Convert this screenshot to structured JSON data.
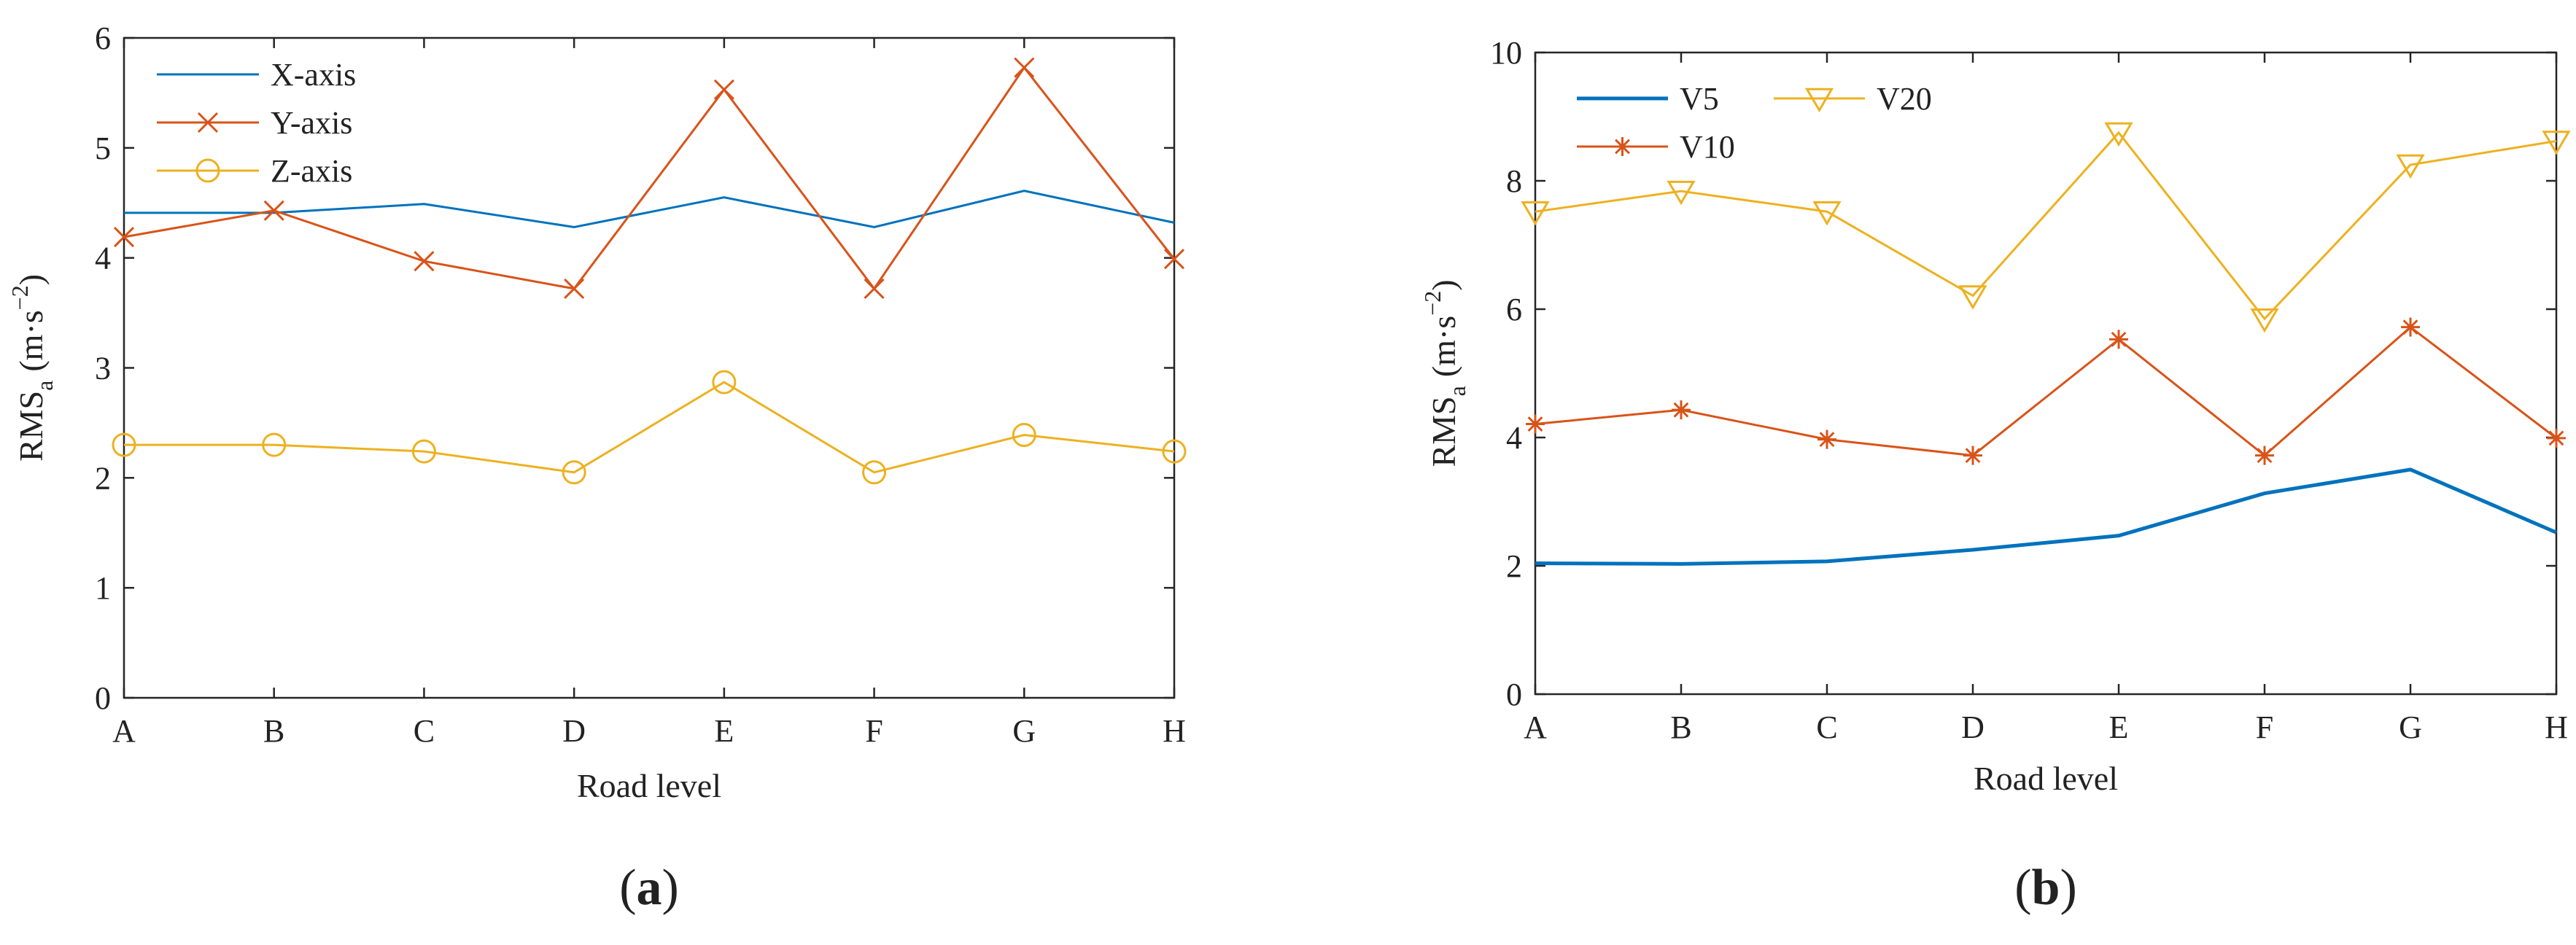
{
  "colors": {
    "blue": "#0072BD",
    "red": "#D95319",
    "yellow": "#EDB120",
    "axis": "#262626"
  },
  "chart_data": [
    {
      "type": "line",
      "panel_label": {
        "open": "(",
        "letter": "a",
        "close": ")"
      },
      "title": "",
      "xlabel": "Road level",
      "ylabel": "RMS",
      "ylabel_sub": "a",
      "ylabel_units": "(m·s",
      "ylabel_exp": "−2",
      "ylabel_close": ")",
      "categories": [
        "A",
        "B",
        "C",
        "D",
        "E",
        "F",
        "G",
        "H"
      ],
      "ylim": [
        0,
        6
      ],
      "yticks": [
        0,
        1,
        2,
        3,
        4,
        5,
        6
      ],
      "ytick_labels": [
        "0",
        "1",
        "2",
        "3",
        "4",
        "5",
        "6"
      ],
      "legend_position": "top-left",
      "series": [
        {
          "name": "X-axis",
          "color": "#0072BD",
          "marker": "none",
          "values": [
            4.41,
            4.41,
            4.49,
            4.28,
            4.55,
            4.28,
            4.61,
            4.32
          ]
        },
        {
          "name": "Y-axis",
          "color": "#D95319",
          "marker": "x",
          "values": [
            4.19,
            4.43,
            3.97,
            3.72,
            5.53,
            3.72,
            5.73,
            3.99
          ]
        },
        {
          "name": "Z-axis",
          "color": "#EDB120",
          "marker": "circle",
          "values": [
            2.3,
            2.3,
            2.24,
            2.05,
            2.87,
            2.05,
            2.39,
            2.24
          ]
        }
      ]
    },
    {
      "type": "line",
      "panel_label": {
        "open": "(",
        "letter": "b",
        "close": ")"
      },
      "title": "",
      "xlabel": "Road level",
      "ylabel": "RMS",
      "ylabel_sub": "a",
      "ylabel_units": "(m·s",
      "ylabel_exp": "−2",
      "ylabel_close": ")",
      "categories": [
        "A",
        "B",
        "C",
        "D",
        "E",
        "F",
        "G",
        "H"
      ],
      "ylim": [
        0,
        10
      ],
      "yticks": [
        0,
        2,
        4,
        6,
        8,
        10
      ],
      "ytick_labels": [
        "0",
        "2",
        "4",
        "6",
        "8",
        "10"
      ],
      "legend_position": "top-left",
      "series": [
        {
          "name": "V5",
          "color": "#0072BD",
          "marker": "none",
          "values": [
            2.04,
            2.03,
            2.07,
            2.25,
            2.47,
            3.13,
            3.5,
            2.52
          ]
        },
        {
          "name": "V10",
          "color": "#D95319",
          "marker": "asterisk",
          "values": [
            4.21,
            4.43,
            3.97,
            3.72,
            5.53,
            3.72,
            5.72,
            3.99
          ]
        },
        {
          "name": "V20",
          "color": "#EDB120",
          "marker": "triangle-down",
          "values": [
            7.52,
            7.84,
            7.52,
            6.21,
            8.75,
            5.85,
            8.25,
            8.62
          ]
        }
      ]
    }
  ]
}
